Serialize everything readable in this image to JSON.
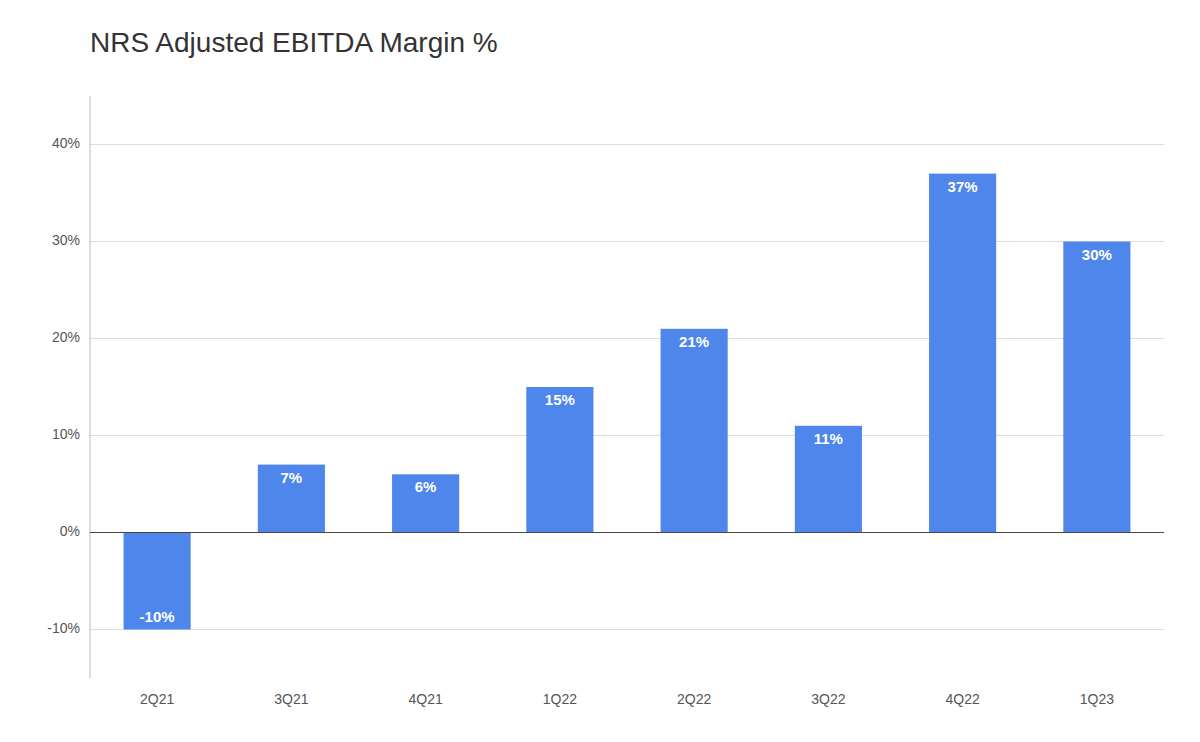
{
  "chart_data": {
    "type": "bar",
    "title": "NRS Adjusted EBITDA Margin %",
    "categories": [
      "2Q21",
      "3Q21",
      "4Q21",
      "1Q22",
      "2Q22",
      "3Q22",
      "4Q22",
      "1Q23"
    ],
    "values": [
      -10,
      7,
      6,
      15,
      21,
      11,
      37,
      30
    ],
    "value_labels": [
      "-10%",
      "7%",
      "6%",
      "15%",
      "21%",
      "11%",
      "37%",
      "30%"
    ],
    "color": "#4F86EC",
    "ylim": [
      -15,
      45
    ],
    "yticks": [
      {
        "value": -10,
        "label": "-10%"
      },
      {
        "value": 0,
        "label": "0%"
      },
      {
        "value": 10,
        "label": "10%"
      },
      {
        "value": 20,
        "label": "20%"
      },
      {
        "value": 30,
        "label": "30%"
      },
      {
        "value": 40,
        "label": "40%"
      }
    ],
    "grid": true,
    "data_labels": true
  }
}
